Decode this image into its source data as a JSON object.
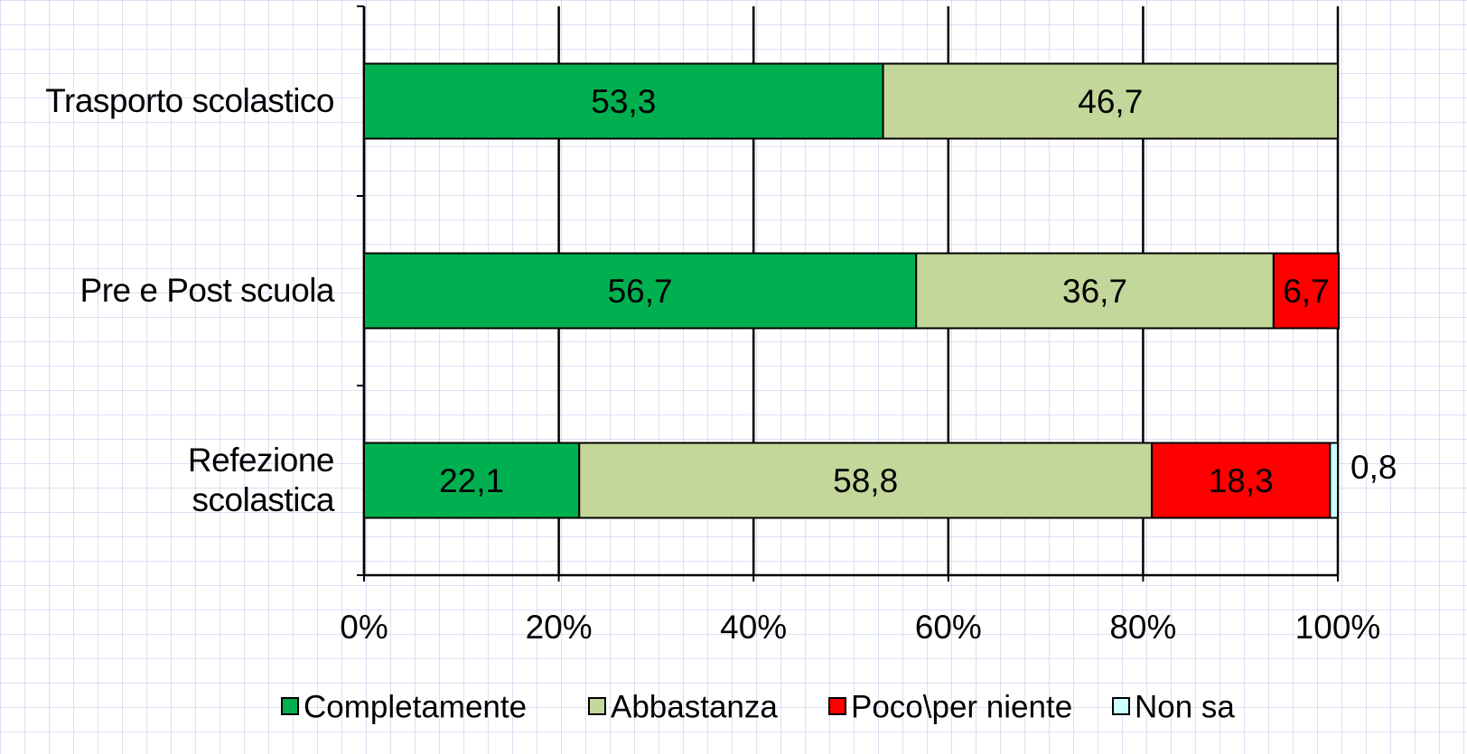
{
  "chart_data": {
    "type": "stacked-bar-horizontal",
    "categories": [
      "Trasporto scolastico",
      "Pre e Post scuola",
      "Refezione\nscolastica"
    ],
    "series": [
      {
        "name": "Completamente",
        "color": "#00b050",
        "values": [
          53.3,
          56.7,
          22.1
        ],
        "value_labels": [
          "53,3",
          "56,7",
          "22,1"
        ]
      },
      {
        "name": "Abbastanza",
        "color": "#c4d79b",
        "values": [
          46.7,
          36.7,
          58.8
        ],
        "value_labels": [
          "46,7",
          "36,7",
          "58,8"
        ]
      },
      {
        "name": "Poco\\per niente",
        "color": "#ff0000",
        "values": [
          null,
          6.7,
          18.3
        ],
        "value_labels": [
          null,
          "6,7",
          "18,3"
        ]
      },
      {
        "name": "Non sa",
        "color": "#ccffff",
        "values": [
          null,
          null,
          0.8
        ],
        "value_labels": [
          null,
          null,
          "0,8"
        ]
      }
    ],
    "xlim": [
      0,
      100
    ],
    "xticks": [
      {
        "value": 0,
        "label": "0%"
      },
      {
        "value": 20,
        "label": "20%"
      },
      {
        "value": 40,
        "label": "40%"
      },
      {
        "value": 60,
        "label": "60%"
      },
      {
        "value": 80,
        "label": "80%"
      },
      {
        "value": 100,
        "label": "100%"
      }
    ],
    "grid": true,
    "legend": "bottom"
  }
}
